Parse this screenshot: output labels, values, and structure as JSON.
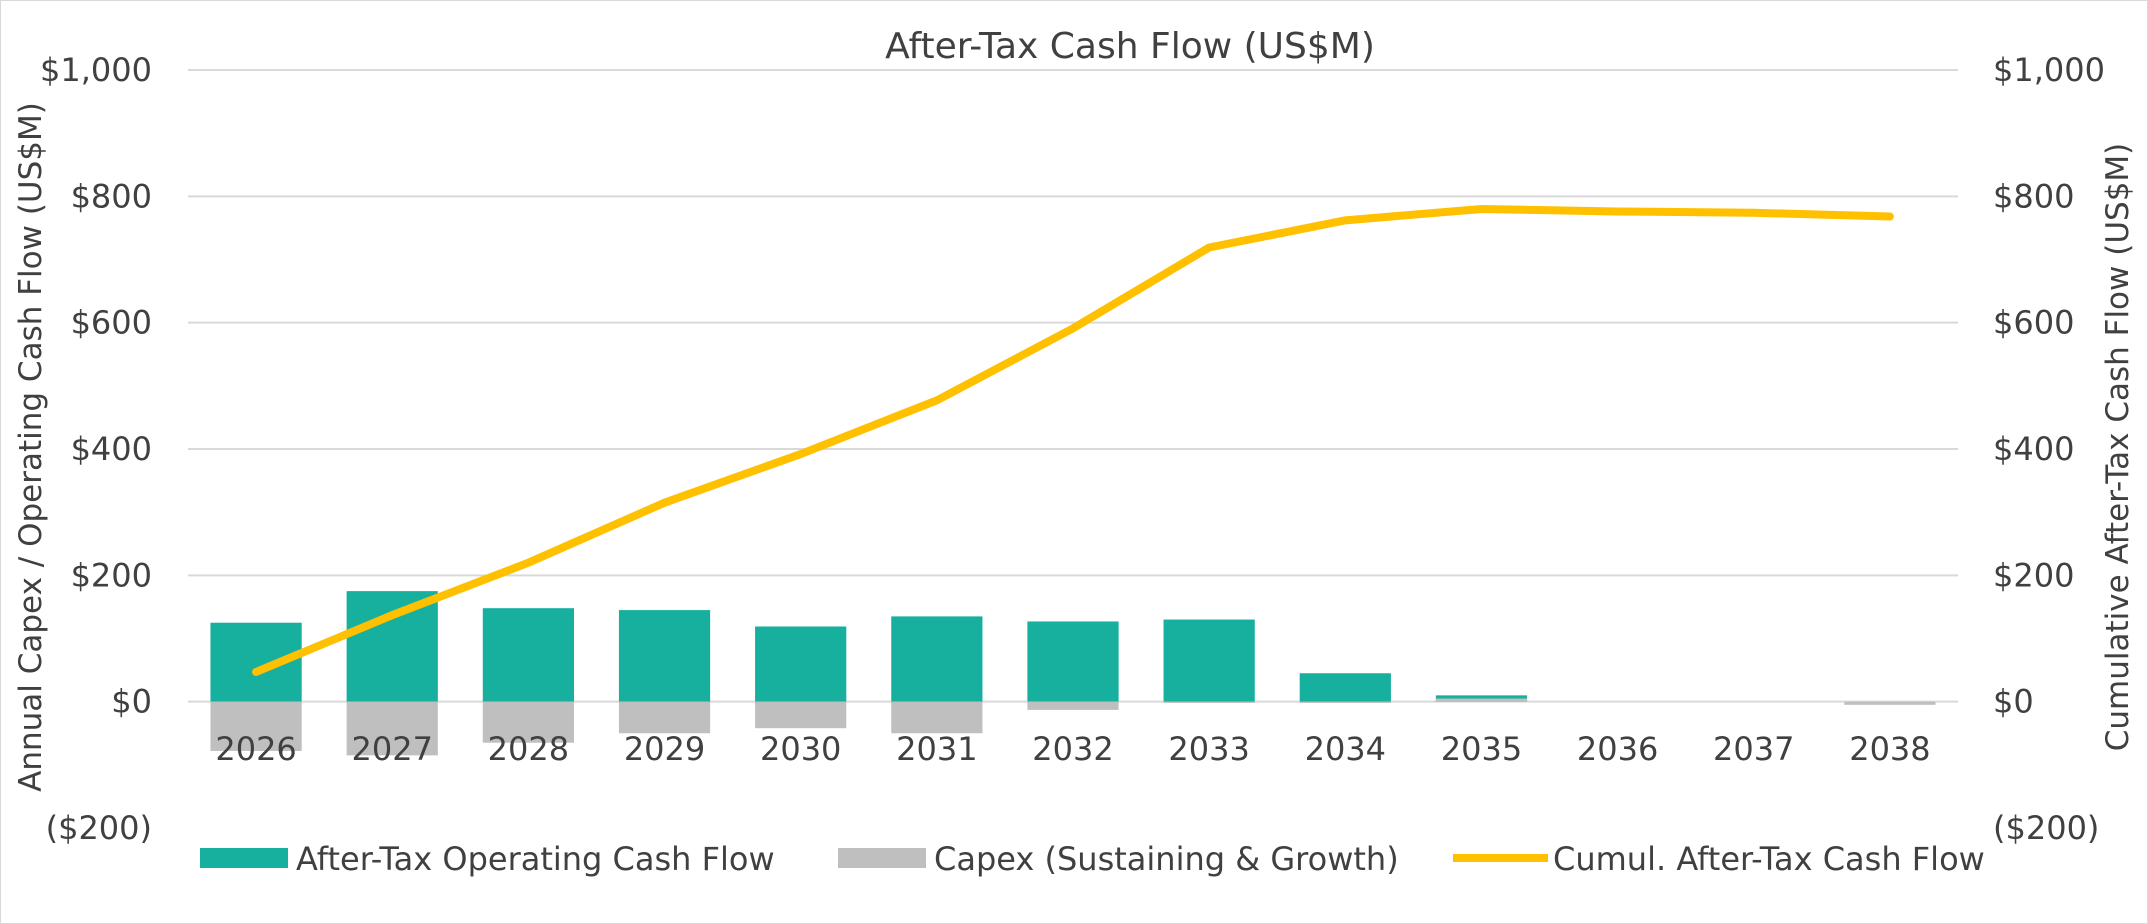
{
  "chart_data": {
    "type": "bar",
    "title": "After-Tax Cash Flow (US$M)",
    "ylabel_left": "Annual Capex / Operating Cash Flow (US$M)",
    "ylabel_right": "Cumulative After-Tax Cash Flow (US$M)",
    "ylim": [
      -200,
      1000
    ],
    "y2lim": [
      -200,
      1000
    ],
    "y_ticks": [
      -200,
      0,
      200,
      400,
      600,
      800,
      1000
    ],
    "y_tick_labels": [
      "($200)",
      "$0",
      "$200",
      "$400",
      "$600",
      "$800",
      "$1,000"
    ],
    "categories": [
      "2026",
      "2027",
      "2028",
      "2029",
      "2030",
      "2031",
      "2032",
      "2033",
      "2034",
      "2035",
      "2036",
      "2037",
      "2038"
    ],
    "grid": true,
    "legend_position": "bottom",
    "series": [
      {
        "name": "After-Tax Operating Cash Flow",
        "type": "bar",
        "axis": "left",
        "color": "#17b09f",
        "values": [
          125,
          175,
          148,
          145,
          119,
          135,
          127,
          130,
          45,
          10,
          0,
          0,
          0
        ]
      },
      {
        "name": "Capex (Sustaining & Growth)",
        "type": "bar",
        "axis": "left",
        "color": "#bfbfbf",
        "values": [
          -78,
          -85,
          -65,
          -50,
          -42,
          -50,
          -13,
          -2,
          -2,
          5,
          0,
          0,
          -5
        ]
      },
      {
        "name": "Cumul. After-Tax Cash Flow",
        "type": "line",
        "axis": "right",
        "color": "#ffc000",
        "values": [
          47,
          137,
          220,
          315,
          392,
          477,
          591,
          719,
          762,
          780,
          776,
          774,
          768
        ]
      }
    ]
  }
}
